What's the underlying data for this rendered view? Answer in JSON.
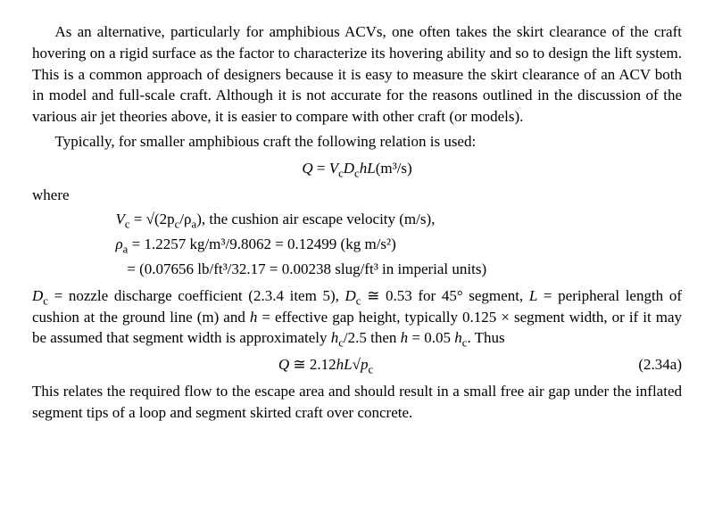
{
  "para1": "As an alternative, particularly for amphibious ACVs, one often takes the skirt clearance of the craft hovering on a rigid surface as the factor to characterize its hovering ability and so to design the lift system. This is a common approach of designers because it is easy to measure the skirt clearance of an ACV both in model and full-scale craft. Although it is not accurate for the reasons outlined in the discussion of the various air jet theories above, it is easier to compare with other craft (or models).",
  "para2": "Typically, for smaller amphibious craft the following relation is used:",
  "eq1_lhs": "Q",
  "eq1_rhs_a": "V",
  "eq1_rhs_b": "D",
  "eq1_rhs_c": "hL",
  "eq1_units": "(m³/s)",
  "where_label": "where",
  "where1_sym": "V",
  "where1_sub": "c",
  "where1_val": "√(2p",
  "where1_val2": "/ρ",
  "where1_val3": "), the cushion air escape velocity (m/s),",
  "where2_sym": "ρ",
  "where2_sub": "a",
  "where2_val": "1.2257 kg/m³/9.8062 = 0.12499 (kg m/s²)",
  "where3_val": "(0.07656 lb/ft³/32.17 = 0.00238 slug/ft³ in imperial units)",
  "para3_a": "D",
  "para3_b": " = nozzle discharge coefficient (2.3.4 item 5), ",
  "para3_c": "D",
  "para3_d": " ≅ 0.53 for 45° segment, ",
  "para3_e": "L",
  "para3_f": " = peripheral length of cushion at the ground line (m) and ",
  "para3_g": "h",
  "para3_h": " = effective gap height, typically 0.125 × segment width, or if it may be assumed that segment width is approximately ",
  "para3_i": "h",
  "para3_j": "/2.5 then ",
  "para3_k": "h",
  "para3_l": " = 0.05 ",
  "para3_m": "h",
  "para3_n": ". Thus",
  "eq2_lhs": "Q",
  "eq2_op": " ≅ 2.12",
  "eq2_h": "hL",
  "eq2_sqrt": "√",
  "eq2_p": "p",
  "eq2_num": "(2.34a)",
  "para4": "This relates the required flow to the escape area and should result in a small free air gap under the inflated segment tips of a loop and segment skirted craft over concrete.",
  "sub_c": "c",
  "sub_a": "a"
}
